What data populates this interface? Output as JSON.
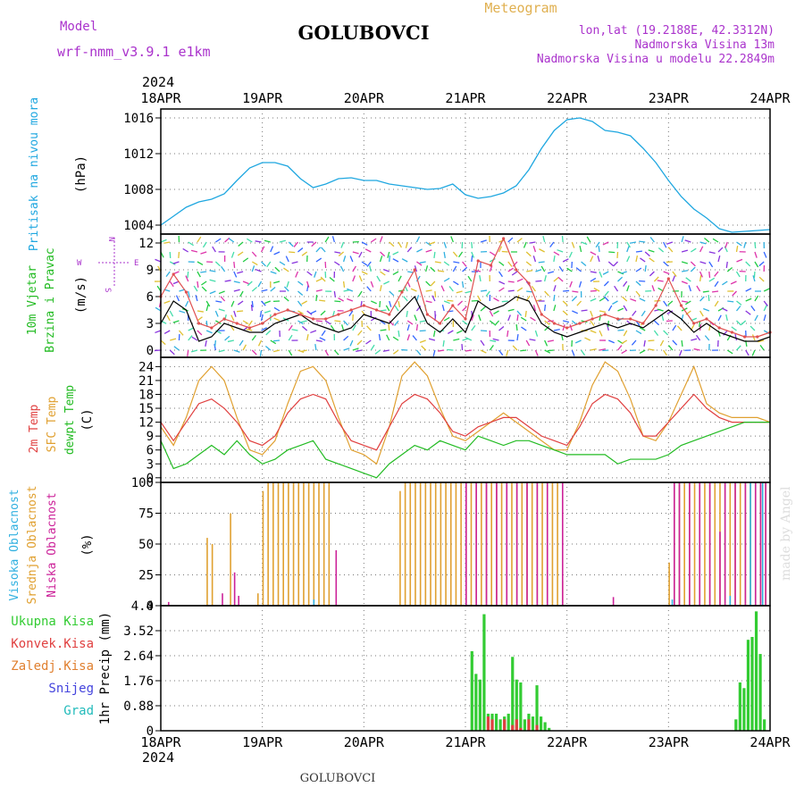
{
  "header": {
    "model_label": "Model",
    "model_name": "wrf-nmm_v3.9.1  e1km",
    "station": "GOLUBOVCI",
    "meteogram_label": "Meteogram",
    "lonlat": "lon,lat (19.2188E, 42.3312N)",
    "elevation": "Nadmorska Visina 13m",
    "model_elevation": "Nadmorska Visina u modelu 22.2849m",
    "year": "2024",
    "footer_station": "GOLUBOVCI",
    "credit": "made by Angel"
  },
  "colors": {
    "pressure": "#1fa7e0",
    "wind_mean": "#000000",
    "wind_gust": "#e05050",
    "temp_2m": "#e04040",
    "temp_sfc": "#e0a030",
    "dewpoint": "#22bb22",
    "cloud_high": "#30b0e0",
    "cloud_mid": "#e0a030",
    "cloud_low": "#cc2299",
    "precip_total": "#33cc33",
    "precip_conv": "#e04040",
    "precip_frozen": "#e08030",
    "precip_snow": "#4444dd",
    "precip_grad": "#22bbbb",
    "header_purple": "#aa33cc",
    "meteogram_label": "#e0b050"
  },
  "chart_data": [
    {
      "type": "line",
      "panel": "pressure",
      "ylabel_main": "Pritisak na nivou mora",
      "unit": "(hPa)",
      "x_categories": [
        "18APR",
        "19APR",
        "20APR",
        "21APR",
        "22APR",
        "23APR",
        "24APR"
      ],
      "ylim": [
        1003,
        1017
      ],
      "yticks": [
        1004,
        1008,
        1012,
        1016
      ],
      "grid": true,
      "series": [
        {
          "name": "Pritisak na nivou mora",
          "x": [
            0,
            0.125,
            0.25,
            0.375,
            0.5,
            0.625,
            0.75,
            0.875,
            1.0,
            1.125,
            1.25,
            1.375,
            1.5,
            1.625,
            1.75,
            1.875,
            2.0,
            2.125,
            2.25,
            2.375,
            2.5,
            2.625,
            2.75,
            2.875,
            3.0,
            3.125,
            3.25,
            3.375,
            3.5,
            3.625,
            3.75,
            3.875,
            4.0,
            4.125,
            4.25,
            4.375,
            4.5,
            4.625,
            4.75,
            4.875,
            5.0,
            5.125,
            5.25,
            5.375,
            5.5,
            5.625,
            5.75,
            5.875,
            6.0
          ],
          "y": [
            1004.0,
            1005.0,
            1006.0,
            1006.6,
            1006.9,
            1007.5,
            1009.0,
            1010.4,
            1011.0,
            1011.0,
            1010.6,
            1009.2,
            1008.2,
            1008.6,
            1009.2,
            1009.3,
            1009.0,
            1009.0,
            1008.6,
            1008.4,
            1008.2,
            1008.0,
            1008.1,
            1008.6,
            1007.4,
            1007.0,
            1007.2,
            1007.6,
            1008.4,
            1010.2,
            1012.6,
            1014.6,
            1015.8,
            1016.0,
            1015.6,
            1014.6,
            1014.4,
            1014.0,
            1012.6,
            1011.0,
            1009.0,
            1007.2,
            1005.8,
            1004.8,
            1003.6,
            1003.2,
            1003.3,
            1003.4,
            1003.5
          ]
        }
      ]
    },
    {
      "type": "line",
      "panel": "wind",
      "ylabel_main": "10m Vjetar",
      "ylabel_sub": "Brzina i Pravac",
      "unit": "(m/s)",
      "compass": [
        "N",
        "W",
        "E",
        "S"
      ],
      "ylim": [
        -0.8,
        13
      ],
      "yticks": [
        0,
        3,
        6,
        9,
        12
      ],
      "grid": true,
      "series": [
        {
          "name": "mean",
          "x": [
            0,
            0.125,
            0.25,
            0.375,
            0.5,
            0.625,
            0.75,
            0.875,
            1.0,
            1.125,
            1.25,
            1.375,
            1.5,
            1.625,
            1.75,
            1.875,
            2.0,
            2.125,
            2.25,
            2.375,
            2.5,
            2.625,
            2.75,
            2.875,
            3.0,
            3.125,
            3.25,
            3.375,
            3.5,
            3.625,
            3.75,
            3.875,
            4.0,
            4.125,
            4.25,
            4.375,
            4.5,
            4.625,
            4.75,
            4.875,
            5.0,
            5.125,
            5.25,
            5.375,
            5.5,
            5.625,
            5.75,
            5.875,
            6.0
          ],
          "y": [
            3.0,
            5.5,
            4.5,
            1.0,
            1.5,
            3.0,
            2.5,
            2.0,
            2.0,
            3.0,
            3.5,
            4.0,
            3.0,
            2.5,
            2.0,
            2.5,
            4.0,
            3.5,
            3.0,
            4.5,
            6.0,
            3.0,
            2.0,
            3.5,
            2.0,
            5.5,
            4.5,
            5.0,
            6.0,
            5.5,
            3.0,
            2.0,
            1.5,
            2.0,
            2.5,
            3.0,
            2.5,
            3.0,
            2.5,
            3.5,
            4.5,
            3.5,
            2.0,
            3.0,
            2.0,
            1.5,
            1.0,
            1.0,
            1.5
          ]
        },
        {
          "name": "gust",
          "x": [
            0,
            0.125,
            0.25,
            0.375,
            0.5,
            0.625,
            0.75,
            0.875,
            1.0,
            1.125,
            1.25,
            1.375,
            1.5,
            1.625,
            1.75,
            1.875,
            2.0,
            2.125,
            2.25,
            2.375,
            2.5,
            2.625,
            2.75,
            2.875,
            3.0,
            3.125,
            3.25,
            3.375,
            3.5,
            3.625,
            3.75,
            3.875,
            4.0,
            4.125,
            4.25,
            4.375,
            4.5,
            4.625,
            4.75,
            4.875,
            5.0,
            5.125,
            5.25,
            5.375,
            5.5,
            5.625,
            5.75,
            5.875,
            6.0
          ],
          "y": [
            6.0,
            8.5,
            6.5,
            3.0,
            2.5,
            3.5,
            3.0,
            2.5,
            3.0,
            4.0,
            4.5,
            4.0,
            3.5,
            3.5,
            4.0,
            4.5,
            5.0,
            4.5,
            4.0,
            6.5,
            9.0,
            4.0,
            3.0,
            5.0,
            3.5,
            10.0,
            9.5,
            12.5,
            9.0,
            7.5,
            4.0,
            3.0,
            2.5,
            3.0,
            3.5,
            4.0,
            3.5,
            3.5,
            3.0,
            5.0,
            8.0,
            5.0,
            3.0,
            3.5,
            2.5,
            2.0,
            1.5,
            1.5,
            2.0
          ]
        }
      ]
    },
    {
      "type": "line",
      "panel": "temperature",
      "ylabel_lines": [
        "2m Temp",
        "SFC Temp",
        "dewpt Temp"
      ],
      "unit": "(C)",
      "ylim": [
        -1,
        26
      ],
      "yticks": [
        0,
        3,
        6,
        9,
        12,
        15,
        18,
        21,
        24
      ],
      "grid": true,
      "series": [
        {
          "name": "2m Temp",
          "x": [
            0,
            0.125,
            0.25,
            0.375,
            0.5,
            0.625,
            0.75,
            0.875,
            1.0,
            1.125,
            1.25,
            1.375,
            1.5,
            1.625,
            1.75,
            1.875,
            2.0,
            2.125,
            2.25,
            2.375,
            2.5,
            2.625,
            2.75,
            2.875,
            3.0,
            3.125,
            3.25,
            3.375,
            3.5,
            3.625,
            3.75,
            3.875,
            4.0,
            4.125,
            4.25,
            4.375,
            4.5,
            4.625,
            4.75,
            4.875,
            5.0,
            5.125,
            5.25,
            5.375,
            5.5,
            5.625,
            5.75,
            5.875,
            6.0
          ],
          "y": [
            12,
            8,
            12,
            16,
            17,
            15,
            12,
            8,
            7,
            9,
            14,
            17,
            18,
            17,
            12,
            8,
            7,
            6,
            11,
            16,
            18,
            17,
            14,
            10,
            9,
            11,
            12,
            13,
            13,
            11,
            9,
            8,
            7,
            11,
            16,
            18,
            17,
            14,
            9,
            9,
            12,
            15,
            18,
            15,
            13,
            12,
            12,
            12,
            12
          ]
        },
        {
          "name": "SFC Temp",
          "x": [
            0,
            0.125,
            0.25,
            0.375,
            0.5,
            0.625,
            0.75,
            0.875,
            1.0,
            1.125,
            1.25,
            1.375,
            1.5,
            1.625,
            1.75,
            1.875,
            2.0,
            2.125,
            2.25,
            2.375,
            2.5,
            2.625,
            2.75,
            2.875,
            3.0,
            3.125,
            3.25,
            3.375,
            3.5,
            3.625,
            3.75,
            3.875,
            4.0,
            4.125,
            4.25,
            4.375,
            4.5,
            4.625,
            4.75,
            4.875,
            5.0,
            5.125,
            5.25,
            5.375,
            5.5,
            5.625,
            5.75,
            5.875,
            6.0
          ],
          "y": [
            11,
            7,
            13,
            21,
            24,
            21,
            13,
            6,
            5,
            8,
            16,
            23,
            24,
            21,
            13,
            6,
            5,
            3,
            11,
            22,
            25,
            22,
            15,
            9,
            8,
            10,
            12,
            14,
            12,
            10,
            8,
            6,
            6,
            12,
            20,
            25,
            23,
            17,
            9,
            8,
            12,
            18,
            24,
            16,
            14,
            13,
            13,
            13,
            12
          ]
        },
        {
          "name": "dewpt Temp",
          "x": [
            0,
            0.125,
            0.25,
            0.375,
            0.5,
            0.625,
            0.75,
            0.875,
            1.0,
            1.125,
            1.25,
            1.375,
            1.5,
            1.625,
            1.75,
            1.875,
            2.0,
            2.125,
            2.25,
            2.375,
            2.5,
            2.625,
            2.75,
            2.875,
            3.0,
            3.125,
            3.25,
            3.375,
            3.5,
            3.625,
            3.75,
            3.875,
            4.0,
            4.125,
            4.25,
            4.375,
            4.5,
            4.625,
            4.75,
            4.875,
            5.0,
            5.125,
            5.25,
            5.375,
            5.5,
            5.625,
            5.75,
            5.875,
            6.0
          ],
          "y": [
            8,
            2,
            3,
            5,
            7,
            5,
            8,
            5,
            3,
            4,
            6,
            7,
            8,
            4,
            3,
            2,
            1,
            0,
            3,
            5,
            7,
            6,
            8,
            7,
            6,
            9,
            8,
            7,
            8,
            8,
            7,
            6,
            5,
            5,
            5,
            5,
            3,
            4,
            4,
            4,
            5,
            7,
            8,
            9,
            10,
            11,
            12,
            12,
            12
          ]
        }
      ]
    },
    {
      "type": "bar",
      "panel": "cloud",
      "ylabel_lines": [
        "Visoka Oblacnost",
        "Srednja Oblacnost",
        "Niska Oblacnost"
      ],
      "unit": "(%)",
      "ylim": [
        0,
        100
      ],
      "yticks": [
        0,
        25,
        50,
        75,
        100
      ],
      "grid": true,
      "series": [
        {
          "name": "Srednja Oblacnost",
          "x": [
            0.45,
            0.5,
            0.68,
            0.95,
            1.0,
            1.05,
            1.1,
            1.15,
            1.2,
            1.25,
            1.3,
            1.35,
            1.4,
            1.45,
            1.5,
            1.55,
            1.6,
            1.65,
            2.35,
            2.4,
            2.45,
            2.5,
            2.55,
            2.6,
            2.65,
            2.7,
            2.75,
            2.8,
            2.85,
            2.9,
            2.95,
            3.0,
            3.05,
            3.1,
            3.15,
            3.2,
            3.25,
            3.3,
            3.35,
            3.4,
            3.45,
            3.5,
            3.55,
            3.6,
            3.65,
            3.7,
            3.75,
            3.8,
            3.85,
            3.9,
            3.95,
            5.0,
            5.05,
            5.1,
            5.15,
            5.2,
            5.25,
            5.3,
            5.35,
            5.4,
            5.45,
            5.5,
            5.55,
            5.6,
            5.65,
            5.7,
            5.75,
            5.8,
            5.85,
            5.9,
            5.95
          ],
          "values": [
            55,
            50,
            75,
            10,
            93,
            100,
            100,
            100,
            100,
            100,
            100,
            100,
            100,
            100,
            100,
            100,
            100,
            100,
            93,
            100,
            100,
            100,
            100,
            100,
            100,
            100,
            100,
            100,
            100,
            100,
            100,
            100,
            100,
            100,
            100,
            100,
            100,
            100,
            100,
            100,
            100,
            100,
            100,
            100,
            100,
            100,
            100,
            100,
            100,
            100,
            20,
            35,
            100,
            100,
            100,
            100,
            100,
            100,
            100,
            100,
            100,
            100,
            100,
            100,
            100,
            100,
            100,
            100,
            100,
            100,
            100
          ]
        },
        {
          "name": "Niska Oblacnost",
          "x": [
            0.07,
            0.6,
            0.72,
            0.76,
            1.72,
            3.0,
            3.1,
            3.2,
            3.3,
            3.4,
            3.5,
            3.6,
            3.7,
            3.8,
            3.95,
            4.45,
            5.05,
            5.1,
            5.2,
            5.3,
            5.4,
            5.5,
            5.55,
            5.65,
            5.75,
            5.85,
            5.9,
            5.95
          ],
          "values": [
            3,
            10,
            27,
            8,
            45,
            100,
            100,
            100,
            100,
            100,
            100,
            100,
            100,
            100,
            100,
            7,
            100,
            100,
            100,
            100,
            100,
            60,
            100,
            100,
            100,
            100,
            100,
            100
          ]
        },
        {
          "name": "Visoka Oblacnost",
          "x": [
            1.5,
            5.03,
            5.6,
            5.8,
            5.92
          ],
          "values": [
            5,
            5,
            8,
            100,
            100
          ]
        }
      ]
    },
    {
      "type": "bar",
      "panel": "precipitation",
      "ylabel": "1hr Precip (mm)",
      "legend": [
        "Ukupna Kisa",
        "Konvek.Kisa",
        "Zaledj.Kisa",
        "Snijeg",
        "Grad"
      ],
      "ylim": [
        0,
        4.4
      ],
      "yticks": [
        0,
        0.88,
        1.76,
        2.64,
        3.52,
        4.4
      ],
      "grid": true,
      "series": [
        {
          "name": "Ukupna Kisa",
          "x": [
            3.05,
            3.09,
            3.13,
            3.17,
            3.21,
            3.25,
            3.29,
            3.33,
            3.37,
            3.41,
            3.45,
            3.49,
            3.53,
            3.57,
            3.61,
            3.65,
            3.69,
            3.73,
            3.77,
            3.81,
            5.65,
            5.69,
            5.73,
            5.77,
            5.81,
            5.85,
            5.89,
            5.93
          ],
          "values": [
            2.8,
            2.0,
            1.8,
            4.1,
            0.6,
            0.6,
            0.6,
            0.4,
            0.5,
            0.6,
            2.6,
            1.8,
            1.7,
            0.4,
            0.6,
            0.5,
            1.6,
            0.5,
            0.3,
            0.1,
            0.4,
            1.7,
            1.5,
            3.2,
            3.3,
            4.2,
            2.7,
            0.4
          ]
        },
        {
          "name": "Konvek.Kisa",
          "x": [
            3.21,
            3.25,
            3.37,
            3.45,
            3.49,
            3.53,
            3.61,
            3.69
          ],
          "values": [
            0.5,
            0.4,
            0.4,
            0.2,
            0.4,
            0.1,
            0.4,
            0.2
          ]
        }
      ]
    }
  ]
}
